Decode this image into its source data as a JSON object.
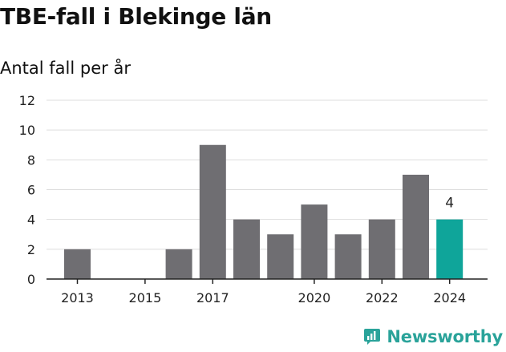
{
  "header": {
    "title": "TBE-fall i Blekinge län",
    "subtitle": "Antal fall per år"
  },
  "brand": {
    "name": "Newsworthy"
  },
  "colors": {
    "bar": "#6f6e72",
    "highlight": "#0fa59a",
    "grid": "#dddddd",
    "axis": "#222222",
    "brand": "#2aa39a"
  },
  "chart_data": {
    "type": "bar",
    "title": "TBE-fall i Blekinge län",
    "subtitle": "Antal fall per år",
    "xlabel": "",
    "ylabel": "",
    "categories": [
      "2013",
      "2014",
      "2015",
      "2016",
      "2017",
      "2018",
      "2019",
      "2020",
      "2021",
      "2022",
      "2023",
      "2024"
    ],
    "values": [
      2,
      0,
      0,
      2,
      9,
      4,
      3,
      5,
      3,
      4,
      7,
      4
    ],
    "x_tick_labels": [
      "2013",
      "2015",
      "2017",
      "2020",
      "2022",
      "2024"
    ],
    "y_ticks": [
      0,
      2,
      4,
      6,
      8,
      10,
      12
    ],
    "ylim": [
      0,
      12
    ],
    "grid": true,
    "highlight_category": "2024",
    "data_labels": [
      {
        "category": "2024",
        "text": "4"
      }
    ]
  }
}
